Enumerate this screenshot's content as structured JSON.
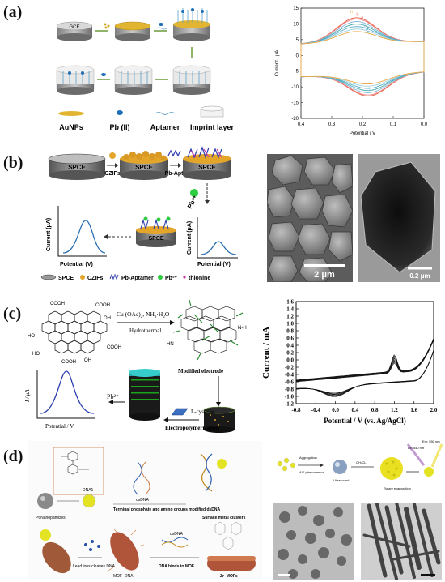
{
  "panels": {
    "a": {
      "label": "(a)",
      "electrode_label": "GCE",
      "legend": [
        "AuNPs",
        "Pb (II)",
        "Aptamer",
        "Imprint layer"
      ],
      "cv_ylabel": "Current / μA",
      "cv_xlabel": "Potential / V",
      "cv_curve_labels": [
        "a",
        "b",
        "c",
        "d",
        "e",
        "f",
        "h"
      ]
    },
    "b": {
      "label": "(b)",
      "electrode": "SPCE",
      "step_labels": [
        "CZIFs",
        "Pb-Apta",
        "Pb²⁺"
      ],
      "ylabel": "Current (μA)",
      "xlabel": "Potential (V)",
      "legend": [
        "SPCE",
        "CZIFs",
        "Pb-Aptamer",
        "Pb²⁺",
        "thionine"
      ],
      "scale_bar_1": "2 μm",
      "scale_bar_2": "0.2 μm"
    },
    "c": {
      "label": "(c)",
      "reagent": "Cu (OAc)",
      "reagent_sub": "2",
      "reagent_2": ", NH",
      "reagent_2_sub": "3",
      "reagent_3": "·H",
      "reagent_3_sub": "2",
      "reagent_4": "O",
      "step1": "Hydrothermal",
      "step2": "Modified electrode",
      "step3": "L-cysteine",
      "step4": "Electropolymerization",
      "ion": "Pb²⁺",
      "small_ylabel": "I / μA",
      "small_xlabel": "Potential / V",
      "cooh": "COOH",
      "ho": "HO",
      "oh": "OH",
      "hn": "HN",
      "nh": "N-H",
      "cv_ylabel": "Current / mA",
      "cv_xlabel": "Potential / V (vs. Ag/AgCl)"
    },
    "d": {
      "label": "(d)",
      "texts": [
        "DNA1",
        "Pt Nanoparticles",
        "dsDNA",
        "Terminal phosphate and amino groups modified dsDNA",
        "Surface metal clusters",
        "Lead ions cleaves DNA",
        "MOF–DNA",
        "DNA binds to MOF",
        "Zr–MOFs",
        "dsDNA"
      ],
      "right_labels": [
        "Aggregation",
        "AIE phenomenon",
        "Ultrasound",
        "CH₃CL",
        "Rotary evaporation",
        "Ex: 440 nm",
        "Em: 550 nm"
      ]
    }
  },
  "chart_data": [
    {
      "type": "line",
      "title": "",
      "xlabel": "Potential / V",
      "ylabel": "Current / μA",
      "xlim": [
        0.4,
        0.0
      ],
      "ylim": [
        -20,
        15
      ],
      "xticks": [
        "0.4",
        "0.3",
        "0.2",
        "0.1",
        "0.0"
      ],
      "yticks": [
        "15",
        "10",
        "5",
        "0",
        "-5",
        "-10",
        "-15",
        "-20"
      ]
    },
    {
      "type": "line",
      "title": "",
      "xlabel": "Potential / V (vs. Ag/AgCl)",
      "ylabel": "Current / mA",
      "xlim": [
        -0.8,
        2.0
      ],
      "ylim": [
        -1.2,
        1.6
      ],
      "xticks": [
        "-0.8",
        "-0.4",
        "0.0",
        "0.4",
        "0.8",
        "1.2",
        "1.6",
        "2.0"
      ],
      "yticks": [
        "1.6",
        "1.4",
        "1.2",
        "1.0",
        "0.8",
        "0.6",
        "0.4",
        "0.2",
        "0.0",
        "-0.2",
        "-0.4",
        "-0.6",
        "-0.8",
        "-1.0",
        "-1.2"
      ]
    }
  ]
}
